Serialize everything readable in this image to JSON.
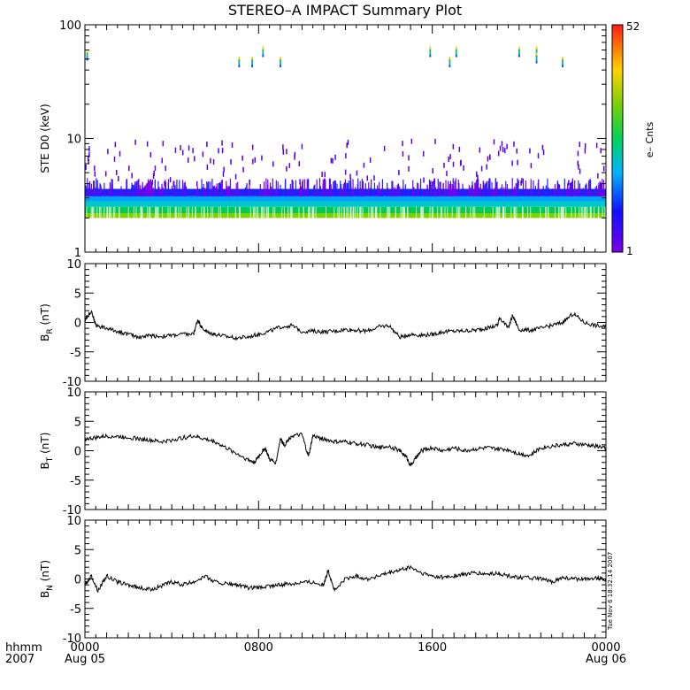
{
  "title": "STEREO–A IMPACT Summary Plot",
  "timestamp": "Tue Nov  6 18:32:14 2007",
  "x_axis": {
    "corner_labels": [
      "hhmm",
      "2007"
    ],
    "ticks": [
      {
        "hours": 0,
        "label": "0000",
        "sublabel": "Aug 05"
      },
      {
        "hours": 8,
        "label": "0800",
        "sublabel": ""
      },
      {
        "hours": 16,
        "label": "1600",
        "sublabel": ""
      },
      {
        "hours": 24,
        "label": "0000",
        "sublabel": "Aug 06"
      }
    ],
    "range_hours": [
      0,
      24
    ]
  },
  "chart_data": [
    {
      "type": "heatmap",
      "panel": "electron-spectrogram",
      "ylabel": "STE D0 (keV)",
      "yscale": "log",
      "ylim": [
        1,
        100
      ],
      "yticks": [
        {
          "value": 1,
          "label": "1"
        },
        {
          "value": 10,
          "label": "10"
        },
        {
          "value": 100,
          "label": "100"
        }
      ],
      "colorbar": {
        "label": "e– Cnts",
        "min": 1,
        "max": 52,
        "min_label": "1",
        "max_label": "52"
      },
      "dense_band_keV": [
        2.0,
        3.6
      ],
      "high_energy_spikes": [
        {
          "hours": 0.1,
          "keV": 55
        },
        {
          "hours": 7.1,
          "keV": 48
        },
        {
          "hours": 7.7,
          "keV": 48
        },
        {
          "hours": 8.2,
          "keV": 59
        },
        {
          "hours": 9.0,
          "keV": 48
        },
        {
          "hours": 15.9,
          "keV": 59
        },
        {
          "hours": 16.8,
          "keV": 48
        },
        {
          "hours": 17.1,
          "keV": 59
        },
        {
          "hours": 20.0,
          "keV": 59
        },
        {
          "hours": 20.8,
          "keV": 59
        },
        {
          "hours": 20.8,
          "keV": 52
        },
        {
          "hours": 22.0,
          "keV": 48
        }
      ]
    },
    {
      "type": "line",
      "panel": "BR",
      "ylabel": "B",
      "ylabel_sub": "R",
      "ylabel_unit": " (nT)",
      "ylim": [
        -10,
        10
      ],
      "yticks": [
        "-10",
        "-5",
        "0",
        "5",
        "10"
      ],
      "x_hours": [
        0,
        0.3,
        0.5,
        1,
        1.5,
        2,
        2.5,
        3,
        3.5,
        4,
        4.5,
        5,
        5.2,
        5.4,
        5.7,
        6,
        6.5,
        7,
        7.5,
        8,
        8.5,
        9,
        9.5,
        10,
        10.5,
        11,
        11.5,
        12,
        12.5,
        13,
        13.5,
        14,
        14.5,
        15,
        15.5,
        16,
        16.5,
        17,
        17.5,
        18,
        18.5,
        19,
        19.1,
        19.5,
        19.7,
        20,
        20.5,
        21,
        21.5,
        22,
        22.5,
        23,
        23.5,
        24
      ],
      "values": [
        0.5,
        2.0,
        -0.5,
        -1.0,
        -1.5,
        -2.0,
        -2.5,
        -2.2,
        -2.4,
        -2.2,
        -2.0,
        -2.0,
        0.5,
        -1.0,
        -1.8,
        -2.0,
        -2.4,
        -2.6,
        -2.5,
        -2.0,
        -1.5,
        -0.8,
        -0.5,
        -1.5,
        -1.5,
        -1.6,
        -1.5,
        -1.2,
        -1.3,
        -1.5,
        -0.8,
        -0.5,
        -2.5,
        -2.0,
        -2.2,
        -2.0,
        -1.6,
        -1.5,
        -1.4,
        -1.3,
        -1.0,
        -0.5,
        0.9,
        -1.0,
        1.2,
        -1.2,
        -1.3,
        -1.0,
        -0.5,
        0.0,
        1.5,
        0.0,
        -0.5,
        -0.8
      ]
    },
    {
      "type": "line",
      "panel": "BT",
      "ylabel": "B",
      "ylabel_sub": "T",
      "ylabel_unit": " (nT)",
      "ylim": [
        -10,
        10
      ],
      "yticks": [
        "-10",
        "-5",
        "0",
        "5",
        "10"
      ],
      "x_hours": [
        0,
        0.5,
        1,
        1.5,
        2,
        2.5,
        3,
        3.5,
        4,
        4.5,
        5,
        5.5,
        6,
        6.5,
        7,
        7.5,
        7.8,
        8,
        8.3,
        8.5,
        8.8,
        9,
        9.2,
        9.5,
        10,
        10.3,
        10.5,
        11,
        11.5,
        12,
        12.5,
        13,
        13.5,
        14,
        14.5,
        14.8,
        15,
        15.3,
        15.5,
        16,
        16.5,
        17,
        17.5,
        18,
        18.5,
        19,
        19.5,
        20,
        20.5,
        21,
        21.5,
        22,
        22.5,
        23,
        23.5,
        24
      ],
      "values": [
        2.0,
        2.2,
        2.5,
        2.4,
        2.3,
        2.0,
        1.8,
        1.5,
        1.8,
        2.2,
        2.5,
        2.0,
        1.5,
        0.5,
        -0.5,
        -1.5,
        -2.0,
        -1.0,
        0.5,
        -1.5,
        -2.0,
        2.0,
        1.0,
        2.5,
        2.7,
        -1.0,
        2.5,
        2.0,
        1.5,
        1.5,
        1.2,
        1.0,
        0.5,
        0.8,
        0.0,
        -1.0,
        -2.5,
        -1.0,
        0.0,
        0.5,
        0.0,
        0.5,
        0.0,
        0.3,
        0.5,
        0.3,
        0.2,
        -0.5,
        -0.8,
        0.5,
        0.8,
        1.0,
        1.2,
        1.0,
        0.8,
        0.5
      ]
    },
    {
      "type": "line",
      "panel": "BN",
      "ylabel": "B",
      "ylabel_sub": "N",
      "ylabel_unit": " (nT)",
      "ylim": [
        -10,
        10
      ],
      "yticks": [
        "-10",
        "-5",
        "0",
        "5",
        "10"
      ],
      "x_hours": [
        0,
        0.3,
        0.6,
        1,
        1.5,
        2,
        2.5,
        3,
        3.5,
        4,
        4.5,
        5,
        5.5,
        6,
        6.5,
        7,
        7.5,
        8,
        8.5,
        9,
        9.5,
        10,
        10.5,
        11,
        11.2,
        11.5,
        12,
        12.5,
        13,
        13.5,
        14,
        14.5,
        15,
        15.5,
        16,
        16.5,
        17,
        17.5,
        18,
        18.5,
        19,
        19.5,
        20,
        20.5,
        21,
        21.5,
        22,
        22.5,
        23,
        23.5,
        24
      ],
      "values": [
        -1.0,
        0.5,
        -2.0,
        0.5,
        -0.5,
        -1.0,
        -1.5,
        -1.8,
        -1.2,
        -0.5,
        -1.0,
        -0.5,
        0.5,
        -0.5,
        -0.8,
        -1.0,
        -1.5,
        -1.5,
        -1.2,
        -1.0,
        -0.8,
        -0.5,
        -0.5,
        -1.0,
        1.5,
        -2.0,
        0.0,
        0.5,
        0.0,
        0.5,
        1.0,
        1.5,
        2.0,
        1.0,
        0.5,
        0.3,
        0.5,
        0.8,
        1.0,
        0.8,
        1.0,
        0.5,
        0.3,
        0.2,
        0.0,
        -0.5,
        0.2,
        0.0,
        0.0,
        0.2,
        0.0
      ]
    }
  ]
}
